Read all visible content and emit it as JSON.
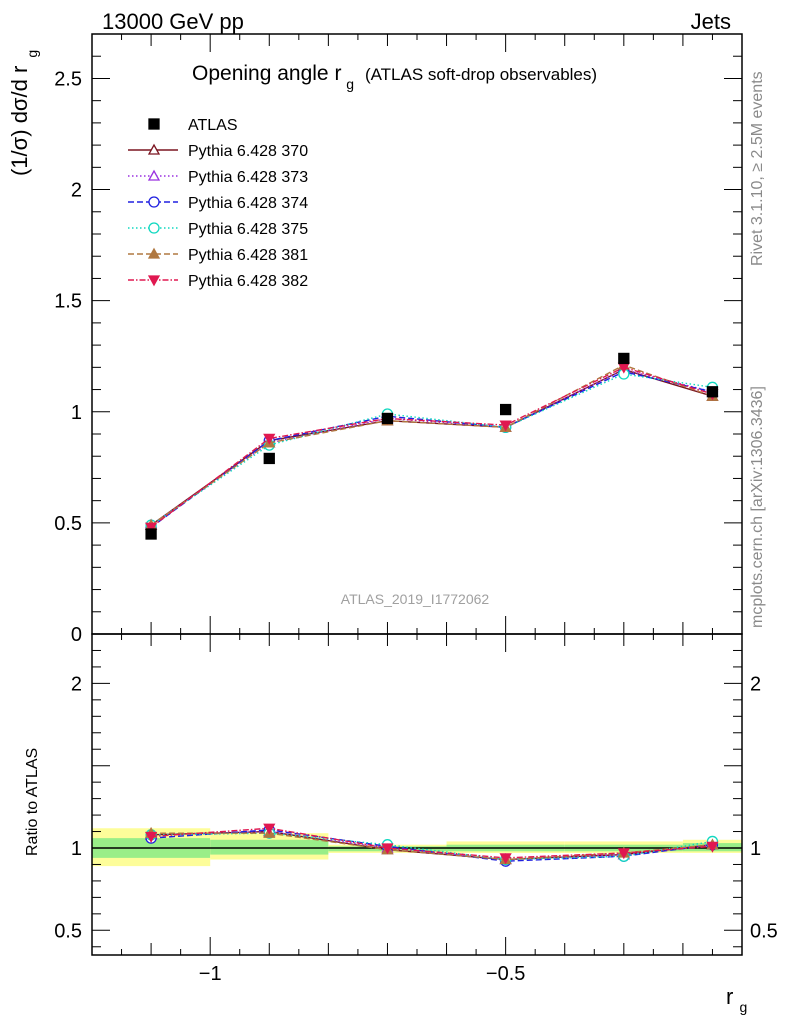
{
  "header": {
    "left": "13000 GeV pp",
    "right": "Jets"
  },
  "side_labels": {
    "rivet": "Rivet 3.1.10, ≥ 2.5M events",
    "mcplots": "mcplots.cern.ch [arXiv:1306.3436]"
  },
  "analysis_id": "ATLAS_2019_I1772062",
  "chart_data": [
    {
      "type": "line",
      "title_main": "Opening angle r",
      "title_sub": "g",
      "title_suffix": "(ATLAS soft-drop observables)",
      "ylabel": "(1/σ) dσ/d r",
      "ylabel_sub": "g",
      "xlim": [
        -1.2,
        -0.1
      ],
      "ylim": [
        0,
        2.7
      ],
      "yticks": [
        "0",
        "0.5",
        "1",
        "1.5",
        "2",
        "2.5"
      ],
      "x": [
        -1.1,
        -0.9,
        -0.7,
        -0.5,
        -0.3,
        -0.15
      ],
      "data": {
        "name": "ATLAS",
        "color": "#000000",
        "marker": "square",
        "values": [
          0.45,
          0.79,
          0.97,
          1.01,
          1.24,
          1.09
        ]
      },
      "series": [
        {
          "name": "Pythia 6.428 370",
          "color": "#7b1520",
          "dash": "",
          "marker": "triangle-open",
          "values": [
            0.49,
            0.87,
            0.96,
            0.93,
            1.19,
            1.07
          ]
        },
        {
          "name": "Pythia 6.428 373",
          "color": "#9a30e0",
          "dash": "1.5,2.5",
          "marker": "triangle-open",
          "values": [
            0.49,
            0.86,
            0.97,
            0.93,
            1.19,
            1.09
          ]
        },
        {
          "name": "Pythia 6.428 374",
          "color": "#2020e0",
          "dash": "6,3",
          "marker": "circle-open",
          "values": [
            0.48,
            0.87,
            0.98,
            0.93,
            1.18,
            1.09
          ]
        },
        {
          "name": "Pythia 6.428 375",
          "color": "#10d8c0",
          "dash": "1.5,2.5",
          "marker": "circle-open",
          "values": [
            0.49,
            0.85,
            0.99,
            0.93,
            1.17,
            1.11
          ]
        },
        {
          "name": "Pythia 6.428 381",
          "color": "#b07840",
          "dash": "6,3",
          "marker": "triangle-filled",
          "values": [
            0.49,
            0.86,
            0.96,
            0.93,
            1.21,
            1.07
          ]
        },
        {
          "name": "Pythia 6.428 382",
          "color": "#e01850",
          "dash": "6,2,1.5,2",
          "marker": "triangle-down-filled",
          "values": [
            0.48,
            0.88,
            0.97,
            0.94,
            1.2,
            1.08
          ]
        }
      ]
    },
    {
      "type": "line",
      "ylabel": "Ratio to ATLAS",
      "xlabel": "r",
      "xlabel_sub": "g",
      "ylim": [
        0.35,
        2.3
      ],
      "yticks": [
        "0.5",
        "1",
        "2"
      ],
      "xticks": [
        "−1",
        "−0.5"
      ],
      "x": [
        -1.1,
        -0.9,
        -0.7,
        -0.5,
        -0.3,
        -0.15
      ],
      "bins": [
        [
          -1.2,
          -1.0
        ],
        [
          -1.0,
          -0.8
        ],
        [
          -0.8,
          -0.6
        ],
        [
          -0.6,
          -0.4
        ],
        [
          -0.4,
          -0.2
        ],
        [
          -0.2,
          -0.1
        ]
      ],
      "band_yellow": [
        [
          0.89,
          1.12
        ],
        [
          0.93,
          1.09
        ],
        [
          0.97,
          1.02
        ],
        [
          0.97,
          1.04
        ],
        [
          0.97,
          1.04
        ],
        [
          0.97,
          1.05
        ]
      ],
      "band_green": [
        [
          0.94,
          1.06
        ],
        [
          0.96,
          1.05
        ],
        [
          0.98,
          1.01
        ],
        [
          0.98,
          1.02
        ],
        [
          0.98,
          1.02
        ],
        [
          0.98,
          1.03
        ]
      ],
      "series": [
        {
          "name": "Pythia 6.428 370",
          "values": [
            1.08,
            1.1,
            0.99,
            0.93,
            0.96,
            1.02
          ]
        },
        {
          "name": "Pythia 6.428 373",
          "values": [
            1.08,
            1.1,
            1.0,
            0.93,
            0.96,
            1.02
          ]
        },
        {
          "name": "Pythia 6.428 374",
          "values": [
            1.06,
            1.11,
            1.01,
            0.92,
            0.95,
            1.02
          ]
        },
        {
          "name": "Pythia 6.428 375",
          "values": [
            1.08,
            1.09,
            1.02,
            0.93,
            0.95,
            1.04
          ]
        },
        {
          "name": "Pythia 6.428 381",
          "values": [
            1.09,
            1.09,
            0.99,
            0.93,
            0.97,
            1.02
          ]
        },
        {
          "name": "Pythia 6.428 382",
          "values": [
            1.07,
            1.12,
            1.0,
            0.94,
            0.97,
            1.01
          ]
        }
      ]
    }
  ]
}
